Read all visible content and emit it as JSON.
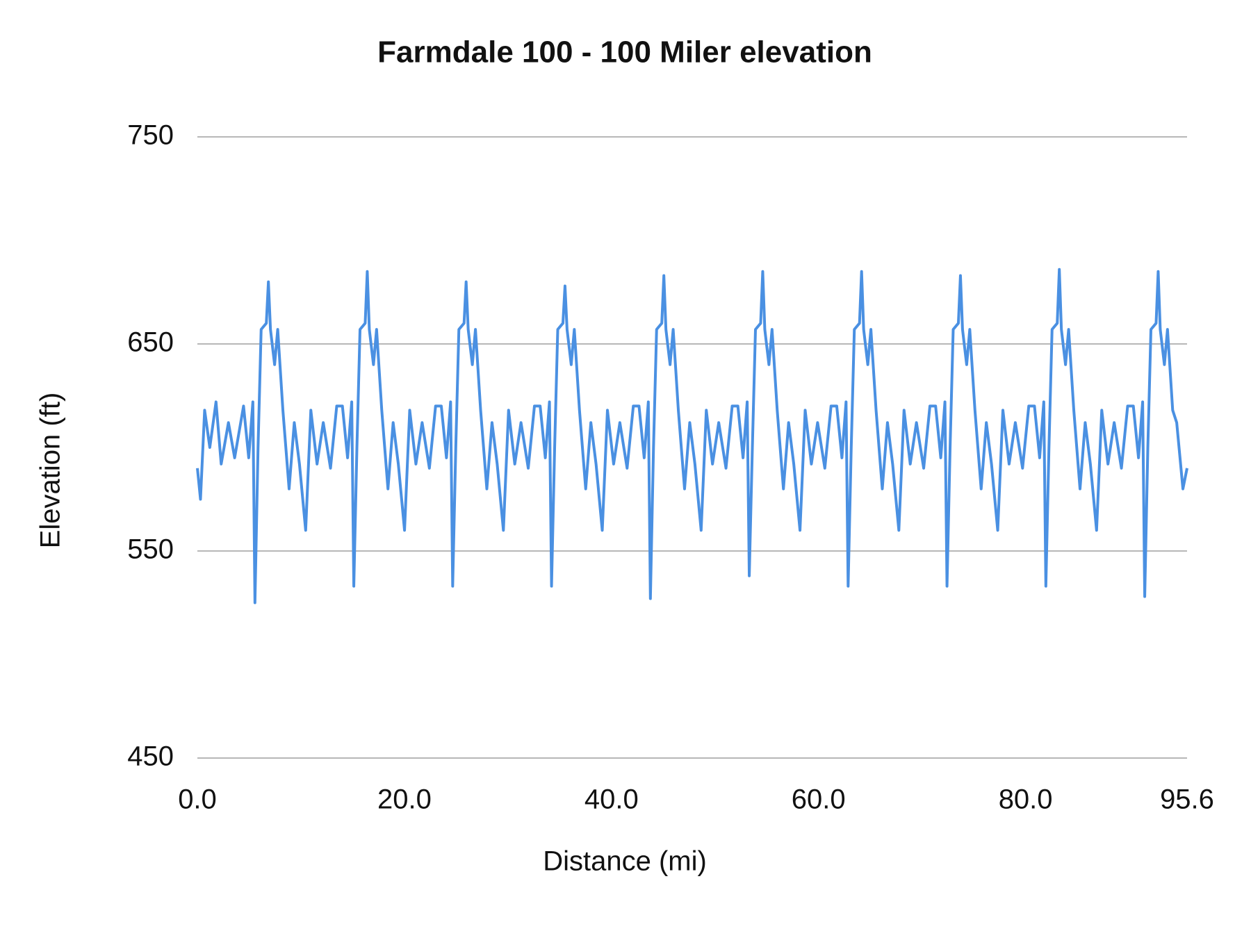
{
  "chart_data": {
    "type": "line",
    "title": "Farmdale 100 - 100 Miler elevation",
    "x_label": "Distance (mi)",
    "y_label": "Elevation (ft)",
    "color": "#4a90e2",
    "grid": true,
    "xlim": [
      0,
      95.6
    ],
    "xticks": [
      {
        "value": 0,
        "label": "0.0"
      },
      {
        "value": 20,
        "label": "20.0"
      },
      {
        "value": 40,
        "label": "40.0"
      },
      {
        "value": 60,
        "label": "60.0"
      },
      {
        "value": 80,
        "label": "80.0"
      },
      95.6
    ],
    "ylim": [
      450,
      750
    ],
    "yticks": [
      450,
      550,
      650,
      750
    ],
    "x": [
      0,
      0.3,
      0.7,
      1.2,
      1.8,
      2.3,
      3.0,
      3.6,
      4.46,
      4.96,
      5.36,
      5.56,
      5.86,
      6.16,
      6.66,
      6.86,
      7.06,
      7.46,
      7.76,
      8.26,
      8.86,
      9.36,
      9.86,
      10.46,
      10.96,
      11.56,
      12.16,
      12.86,
      13.46,
      14.01,
      14.51,
      14.91,
      15.11,
      15.41,
      15.71,
      16.21,
      16.41,
      16.61,
      17.01,
      17.31,
      17.81,
      18.41,
      18.91,
      19.41,
      20.01,
      20.51,
      21.11,
      21.71,
      22.41,
      23.01,
      23.56,
      24.06,
      24.46,
      24.66,
      24.96,
      25.26,
      25.76,
      25.96,
      26.16,
      26.56,
      26.86,
      27.36,
      27.96,
      28.46,
      28.96,
      29.56,
      30.06,
      30.66,
      31.26,
      31.96,
      32.56,
      33.11,
      33.61,
      34.01,
      34.21,
      34.51,
      34.81,
      35.31,
      35.51,
      35.71,
      36.11,
      36.41,
      36.91,
      37.51,
      38.01,
      38.51,
      39.11,
      39.61,
      40.21,
      40.81,
      41.51,
      42.11,
      42.66,
      43.16,
      43.56,
      43.76,
      44.06,
      44.36,
      44.86,
      45.06,
      45.26,
      45.66,
      45.96,
      46.46,
      47.06,
      47.56,
      48.06,
      48.66,
      49.16,
      49.76,
      50.36,
      51.06,
      51.66,
      52.21,
      52.71,
      53.11,
      53.31,
      53.61,
      53.91,
      54.41,
      54.61,
      54.81,
      55.21,
      55.51,
      56.01,
      56.61,
      57.11,
      57.61,
      58.21,
      58.71,
      59.31,
      59.91,
      60.61,
      61.21,
      61.76,
      62.26,
      62.66,
      62.86,
      63.16,
      63.46,
      63.96,
      64.16,
      64.36,
      64.76,
      65.06,
      65.56,
      66.16,
      66.66,
      67.16,
      67.76,
      68.26,
      68.86,
      69.46,
      70.16,
      70.76,
      71.31,
      71.81,
      72.21,
      72.41,
      72.71,
      73.01,
      73.51,
      73.71,
      73.91,
      74.31,
      74.61,
      75.11,
      75.71,
      76.21,
      76.71,
      77.31,
      77.81,
      78.41,
      79.01,
      79.71,
      80.31,
      80.86,
      81.36,
      81.76,
      81.96,
      82.26,
      82.56,
      83.06,
      83.26,
      83.46,
      83.86,
      84.16,
      84.66,
      85.26,
      85.76,
      86.26,
      86.86,
      87.36,
      87.96,
      88.56,
      89.26,
      89.86,
      90.41,
      90.91,
      91.31,
      91.51,
      91.81,
      92.11,
      92.61,
      92.81,
      93.01,
      93.41,
      93.71,
      94.21,
      94.6,
      95.2,
      95.6
    ],
    "values": [
      590,
      575,
      618,
      600,
      622,
      592,
      612,
      595,
      620,
      595,
      622,
      525,
      600,
      657,
      660,
      680,
      657,
      640,
      657,
      618,
      580,
      612,
      592,
      560,
      618,
      592,
      612,
      590,
      620,
      620,
      595,
      622,
      533,
      600,
      657,
      660,
      685,
      657,
      640,
      657,
      618,
      580,
      612,
      592,
      560,
      618,
      592,
      612,
      590,
      620,
      620,
      595,
      622,
      533,
      600,
      657,
      660,
      680,
      657,
      640,
      657,
      618,
      580,
      612,
      592,
      560,
      618,
      592,
      612,
      590,
      620,
      620,
      595,
      622,
      533,
      600,
      657,
      660,
      678,
      657,
      640,
      657,
      618,
      580,
      612,
      592,
      560,
      618,
      592,
      612,
      590,
      620,
      620,
      595,
      622,
      527,
      600,
      657,
      660,
      683,
      657,
      640,
      657,
      618,
      580,
      612,
      592,
      560,
      618,
      592,
      612,
      590,
      620,
      620,
      595,
      622,
      538,
      600,
      657,
      660,
      685,
      657,
      640,
      657,
      618,
      580,
      612,
      592,
      560,
      618,
      592,
      612,
      590,
      620,
      620,
      595,
      622,
      533,
      600,
      657,
      660,
      685,
      657,
      640,
      657,
      618,
      580,
      612,
      592,
      560,
      618,
      592,
      612,
      590,
      620,
      620,
      595,
      622,
      533,
      600,
      657,
      660,
      683,
      657,
      640,
      657,
      618,
      580,
      612,
      592,
      560,
      618,
      592,
      612,
      590,
      620,
      620,
      595,
      622,
      533,
      600,
      657,
      660,
      686,
      657,
      640,
      657,
      618,
      580,
      612,
      592,
      560,
      618,
      592,
      612,
      590,
      620,
      620,
      595,
      622,
      528,
      600,
      657,
      660,
      685,
      657,
      640,
      657,
      618,
      612,
      580,
      590
    ]
  }
}
